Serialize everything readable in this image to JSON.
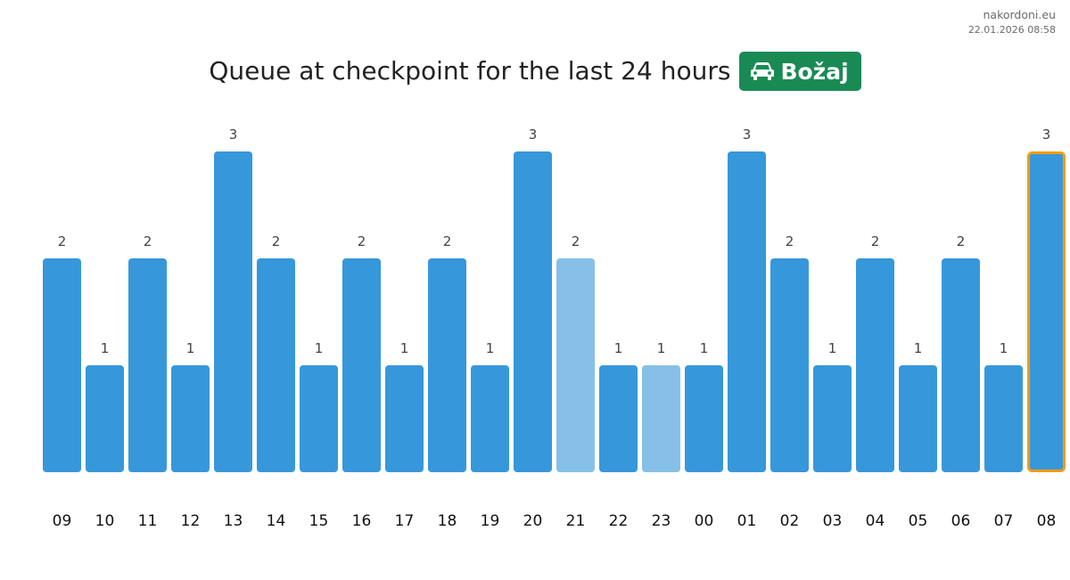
{
  "meta": {
    "site": "nakordoni.eu",
    "timestamp": "22.01.2026 08:58"
  },
  "header": {
    "title": "Queue at checkpoint for the last 24 hours",
    "badge_label": "Božaj",
    "badge_icon": "car-icon"
  },
  "colors": {
    "bar": "#3797db",
    "bar_light": "#86c0e8",
    "highlight_border": "#f39c12",
    "badge_bg": "#1a8a55"
  },
  "chart_data": {
    "type": "bar",
    "title": "Queue at checkpoint for the last 24 hours",
    "xlabel": "",
    "ylabel": "",
    "categories": [
      "09",
      "10",
      "11",
      "12",
      "13",
      "14",
      "15",
      "16",
      "17",
      "18",
      "19",
      "20",
      "21",
      "22",
      "23",
      "00",
      "01",
      "02",
      "03",
      "04",
      "05",
      "06",
      "07",
      "08"
    ],
    "values": [
      2,
      1,
      2,
      1,
      3,
      2,
      1,
      2,
      1,
      2,
      1,
      3,
      2,
      1,
      1,
      1,
      3,
      2,
      1,
      2,
      1,
      2,
      1,
      3
    ],
    "light_bars": [
      "21",
      "23"
    ],
    "highlighted": "08",
    "ylim": [
      0,
      3
    ],
    "grid": false,
    "legend": "none",
    "data_labels": true
  }
}
